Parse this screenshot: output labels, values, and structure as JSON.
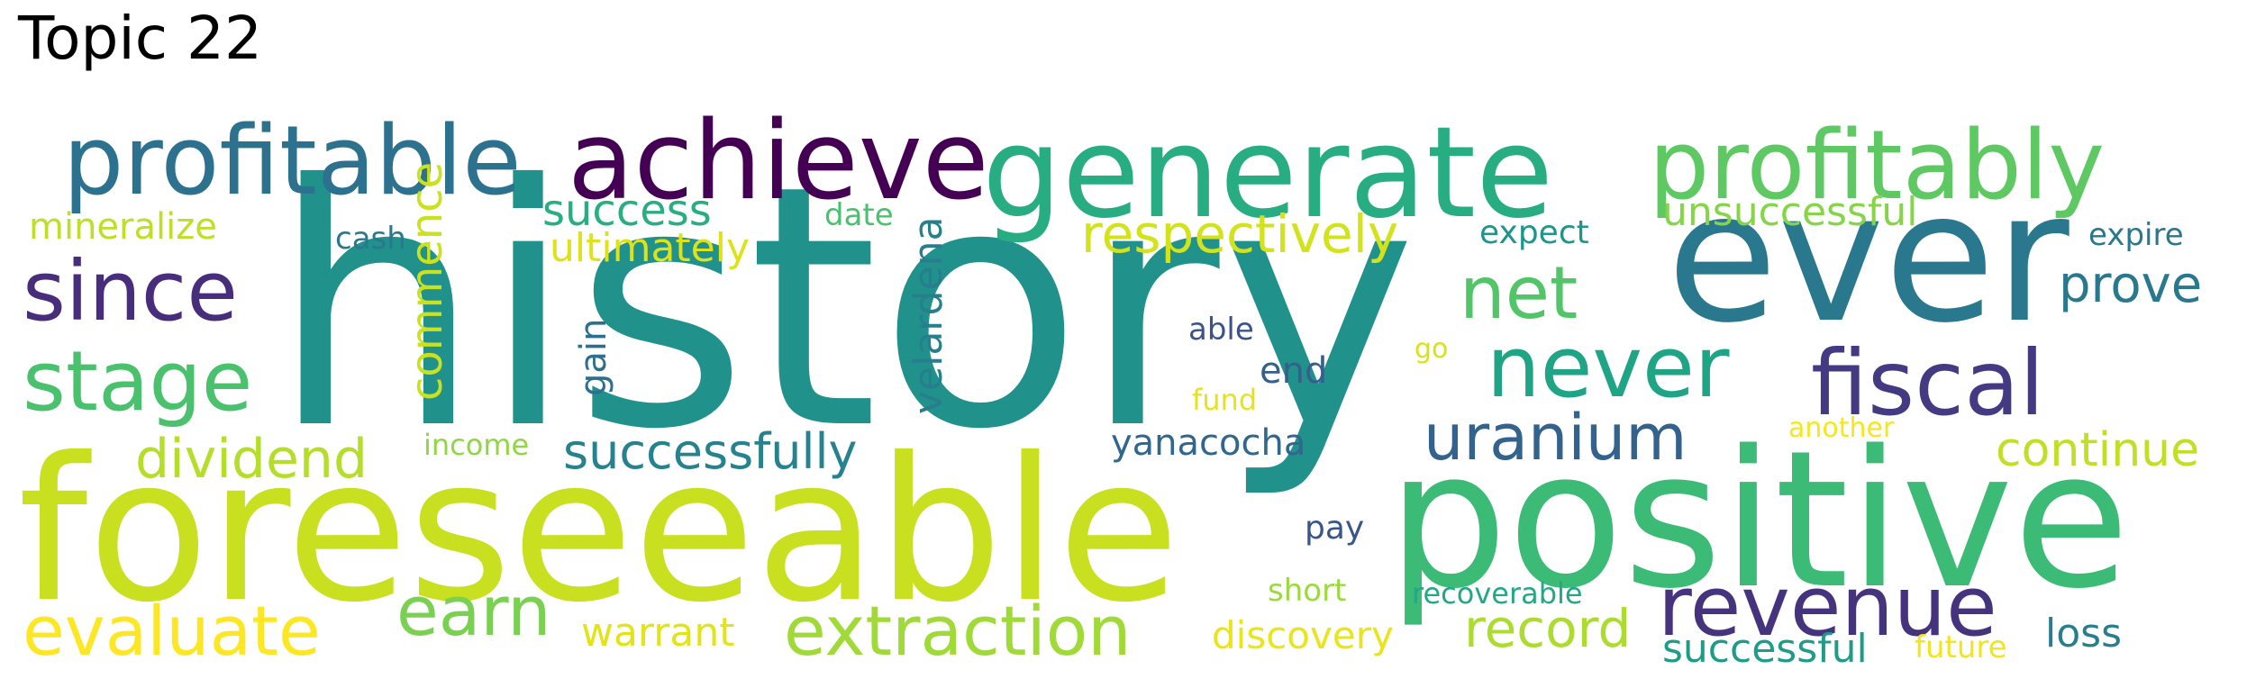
{
  "title": "Topic 22",
  "words": [
    {
      "text": "history",
      "color": "#21918c"
    },
    {
      "text": "foreseeable",
      "color": "#c8e020"
    },
    {
      "text": "positive",
      "color": "#3bbb75"
    },
    {
      "text": "ever",
      "color": "#2a788e"
    },
    {
      "text": "generate",
      "color": "#27ad81"
    },
    {
      "text": "achieve",
      "color": "#440154"
    },
    {
      "text": "profitable",
      "color": "#2c728e"
    },
    {
      "text": "profitably",
      "color": "#5ec962"
    },
    {
      "text": "since",
      "color": "#472d7b"
    },
    {
      "text": "stage",
      "color": "#4ac16d"
    },
    {
      "text": "fiscal",
      "color": "#443983"
    },
    {
      "text": "never",
      "color": "#20a486"
    },
    {
      "text": "revenue",
      "color": "#46337e"
    },
    {
      "text": "extraction",
      "color": "#a0da39"
    },
    {
      "text": "evaluate",
      "color": "#fde725"
    },
    {
      "text": "uranium",
      "color": "#33638d"
    },
    {
      "text": "earn",
      "color": "#7ad151"
    },
    {
      "text": "net",
      "color": "#52c569"
    },
    {
      "text": "dividend",
      "color": "#b5de2b"
    },
    {
      "text": "record",
      "color": "#addc30"
    },
    {
      "text": "respectively",
      "color": "#d2e21b"
    },
    {
      "text": "successfully",
      "color": "#26828e"
    },
    {
      "text": "prove",
      "color": "#2a788e"
    },
    {
      "text": "continue",
      "color": "#c2df23"
    },
    {
      "text": "commence",
      "color": "#cae11f"
    },
    {
      "text": "velardena",
      "color": "#277f8e"
    },
    {
      "text": "success",
      "color": "#28ae80"
    },
    {
      "text": "ultimately",
      "color": "#dde318"
    },
    {
      "text": "unsuccessful",
      "color": "#86d549"
    },
    {
      "text": "warrant",
      "color": "#e2e418"
    },
    {
      "text": "discovery",
      "color": "#eae51a"
    },
    {
      "text": "successful",
      "color": "#1e9c89"
    },
    {
      "text": "loss",
      "color": "#277f8e"
    },
    {
      "text": "mineralize",
      "color": "#bddf26"
    },
    {
      "text": "gain",
      "color": "#2d708e"
    },
    {
      "text": "end",
      "color": "#355f8d"
    },
    {
      "text": "yanacocha",
      "color": "#31668e"
    },
    {
      "text": "future",
      "color": "#f1e51d"
    },
    {
      "text": "expect",
      "color": "#1f968b"
    },
    {
      "text": "expire",
      "color": "#2a788e"
    },
    {
      "text": "cash",
      "color": "#2a788e"
    },
    {
      "text": "date",
      "color": "#4ac16d"
    },
    {
      "text": "able",
      "color": "#3b528b"
    },
    {
      "text": "income",
      "color": "#8fd744"
    },
    {
      "text": "recoverable",
      "color": "#22a884"
    },
    {
      "text": "pay",
      "color": "#39568c"
    },
    {
      "text": "short",
      "color": "#9bd93c"
    },
    {
      "text": "go",
      "color": "#d8e219"
    },
    {
      "text": "fund",
      "color": "#e5e419"
    },
    {
      "text": "another",
      "color": "#f6e620"
    }
  ]
}
